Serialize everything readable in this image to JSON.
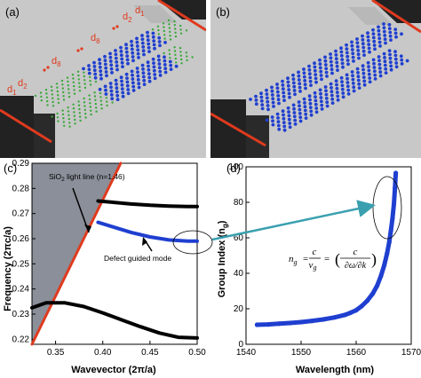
{
  "panels": {
    "a": {
      "label": "(a)",
      "markers": [
        "d",
        "d",
        "d",
        "d",
        "d",
        "d"
      ],
      "marker_subs": [
        "1",
        "2",
        "8",
        "8",
        "2",
        "1"
      ]
    },
    "b": {
      "label": "(b)"
    },
    "c": {
      "label": "(c)"
    },
    "d": {
      "label": "(d)"
    }
  },
  "colors": {
    "slab": "#c8c8c8",
    "substrate": "#222222",
    "waveguide_edge": "#e03a1e",
    "blue_holes": "#1f3fd0",
    "green_holes": "#3aa83a",
    "light_cone": "#8a8f99",
    "lightline": "#e03a1e",
    "defect_mode": "#1f3fd0",
    "band": "#000000",
    "arrow": "#3aa0b0"
  },
  "chart_data": [
    {
      "type": "line",
      "panel": "c",
      "xlabel": "Wavevector (2π/a)",
      "ylabel": "Frequency (2πc/a)",
      "xlim": [
        0.325,
        0.5
      ],
      "ylim": [
        0.218,
        0.29
      ],
      "x_ticks": [
        0.35,
        0.4,
        0.45,
        0.5
      ],
      "y_ticks": [
        0.22,
        0.23,
        0.24,
        0.25,
        0.26,
        0.27,
        0.28,
        0.29
      ],
      "annotations": {
        "light_line_1": "SiO",
        "light_line_sub": "2",
        "light_line_2": " light line (n=1.46)",
        "defect_mode": "Defect guided mode"
      },
      "series": [
        {
          "role": "light-line",
          "x": [
            0.325,
            0.419
          ],
          "y": [
            0.218,
            0.29
          ]
        },
        {
          "role": "upper-band",
          "x": [
            0.395,
            0.41,
            0.43,
            0.45,
            0.47,
            0.49,
            0.5
          ],
          "y": [
            0.275,
            0.2745,
            0.2738,
            0.2733,
            0.273,
            0.2728,
            0.2728
          ]
        },
        {
          "role": "defect-mode",
          "x": [
            0.395,
            0.41,
            0.43,
            0.45,
            0.47,
            0.49,
            0.5
          ],
          "y": [
            0.2665,
            0.2648,
            0.2625,
            0.2607,
            0.2595,
            0.259,
            0.259
          ]
        },
        {
          "role": "lower-band",
          "x": [
            0.325,
            0.34,
            0.36,
            0.38,
            0.4,
            0.42,
            0.44,
            0.46,
            0.48,
            0.5
          ],
          "y": [
            0.2325,
            0.2345,
            0.2345,
            0.233,
            0.2305,
            0.2277,
            0.225,
            0.2225,
            0.2208,
            0.2205
          ]
        }
      ]
    },
    {
      "type": "scatter",
      "panel": "d",
      "xlabel": "Wavelength (nm)",
      "ylabel": "Group Index (n",
      "ylabel_sub": "g",
      "ylabel_end": ")",
      "xlim": [
        1540,
        1570
      ],
      "ylim": [
        0,
        100
      ],
      "x_ticks": [
        1540,
        1550,
        1560,
        1570
      ],
      "y_ticks": [
        0,
        20,
        40,
        60,
        80,
        100
      ],
      "x": [
        1542,
        1544,
        1546,
        1548,
        1550,
        1552,
        1554,
        1556,
        1558,
        1559,
        1560,
        1561,
        1562,
        1563,
        1563.8,
        1564.5,
        1565.1,
        1565.6,
        1566.0,
        1566.3,
        1566.6,
        1566.85,
        1567.05,
        1567.2
      ],
      "y": [
        11.0,
        11.2,
        11.6,
        12.0,
        12.5,
        13.2,
        14.0,
        15.1,
        16.6,
        17.8,
        19.2,
        21.5,
        24.5,
        28.5,
        33.0,
        38.5,
        44.5,
        51.0,
        57.5,
        64.0,
        71.0,
        79.0,
        88.0,
        96.5
      ],
      "formula": {
        "lhs": "n",
        "lhs_sub": "g",
        "eq1": "=",
        "frac1_num": "c",
        "frac1_den": "v",
        "frac1_den_sub": "g",
        "eq2": "=",
        "frac2_num": "c",
        "frac2_den": "∂ω/∂k"
      }
    }
  ]
}
